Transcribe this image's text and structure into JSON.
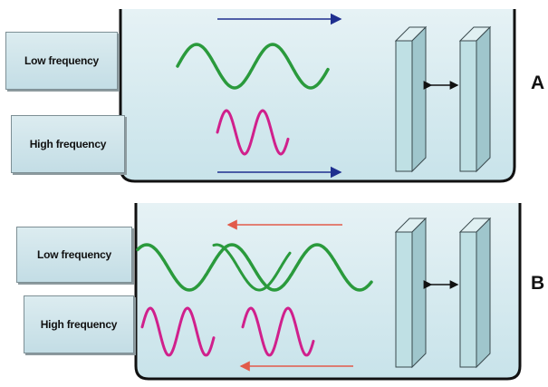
{
  "panels": [
    {
      "letter": "A",
      "labels": {
        "low": "Low frequency",
        "high": "High frequency"
      },
      "arrow_direction": "right",
      "arrow_color": "#1f2f8f"
    },
    {
      "letter": "B",
      "labels": {
        "low": "Low frequency",
        "high": "High frequency"
      },
      "arrow_direction": "left",
      "arrow_color": "#e25a4a"
    }
  ],
  "colors": {
    "low_wave": "#2a9a3c",
    "high_wave": "#d0208c",
    "water": "#d3e9f0",
    "tank_outline": "#111111",
    "barrier": "#bfe0e4"
  }
}
